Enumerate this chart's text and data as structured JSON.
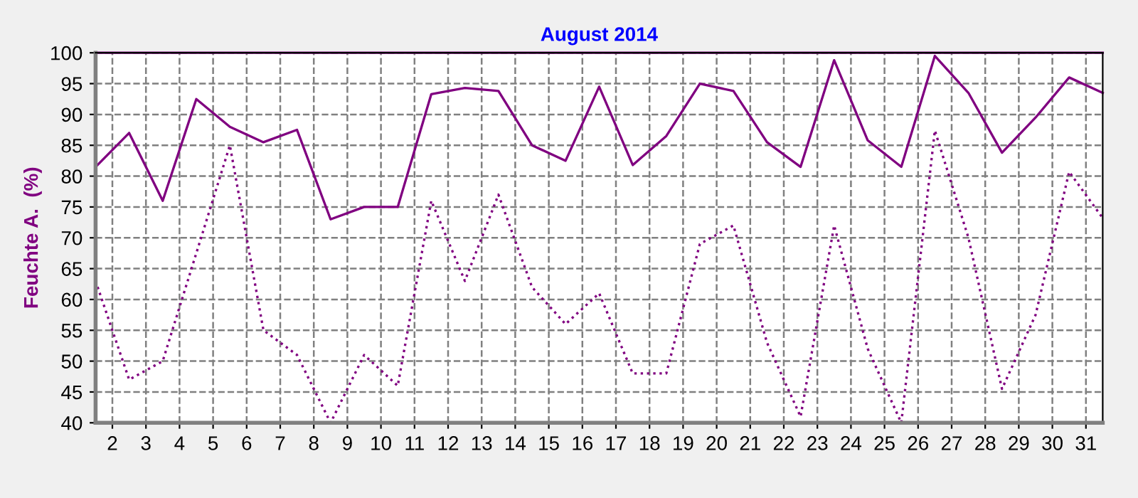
{
  "chart_data": {
    "type": "line",
    "title": "August 2014",
    "ylabel": "Feuchte A.  (%)",
    "x": [
      1.5,
      2.5,
      3.5,
      4.5,
      5.5,
      6.5,
      7.5,
      8.5,
      9.5,
      10.5,
      11.5,
      12.5,
      13.5,
      14.5,
      15.5,
      16.5,
      17.5,
      18.5,
      19.5,
      20.5,
      21.5,
      22.5,
      23.5,
      24.5,
      25.5,
      26.5,
      27.5,
      28.5,
      29.5,
      30.5,
      31.5
    ],
    "series": [
      {
        "color": "#800080",
        "line_style": "solid",
        "values": [
          100,
          100,
          100,
          100,
          100,
          100,
          100,
          100,
          100,
          100,
          100,
          100,
          100,
          100,
          100,
          100,
          100,
          100,
          100,
          100,
          100,
          100,
          100,
          100,
          100,
          100,
          100,
          100,
          100,
          100,
          100
        ]
      },
      {
        "color": "#800080",
        "line_style": "solid",
        "values": [
          81.5,
          87,
          76,
          92.5,
          88,
          85.5,
          87.5,
          73,
          75,
          75,
          93.3,
          94.3,
          93.8,
          85,
          82.5,
          94.5,
          81.8,
          86.5,
          95,
          93.8,
          85.5,
          81.5,
          98.8,
          85.8,
          81.5,
          99.5,
          93.5,
          83.8,
          89.5,
          96,
          93.5
        ]
      },
      {
        "color": "#800080",
        "line_style": "dotted",
        "values": [
          63,
          47,
          50,
          67.5,
          85,
          55,
          51,
          40,
          51,
          46,
          76,
          63,
          77,
          62,
          56,
          61,
          48,
          48,
          69,
          72,
          53,
          41,
          72,
          52,
          40,
          87.4,
          70,
          45.5,
          57.5,
          80.7,
          73.2
        ]
      }
    ],
    "xlim": [
      1.5,
      31.5
    ],
    "xticks": [
      2,
      3,
      4,
      5,
      6,
      7,
      8,
      9,
      10,
      11,
      12,
      13,
      14,
      15,
      16,
      17,
      18,
      19,
      20,
      21,
      22,
      23,
      24,
      25,
      26,
      27,
      28,
      29,
      30,
      31
    ],
    "ylim": [
      40,
      100
    ],
    "yticks": [
      40,
      45,
      50,
      55,
      60,
      65,
      70,
      75,
      80,
      85,
      90,
      95,
      100
    ],
    "grid": true,
    "marker": "none"
  }
}
